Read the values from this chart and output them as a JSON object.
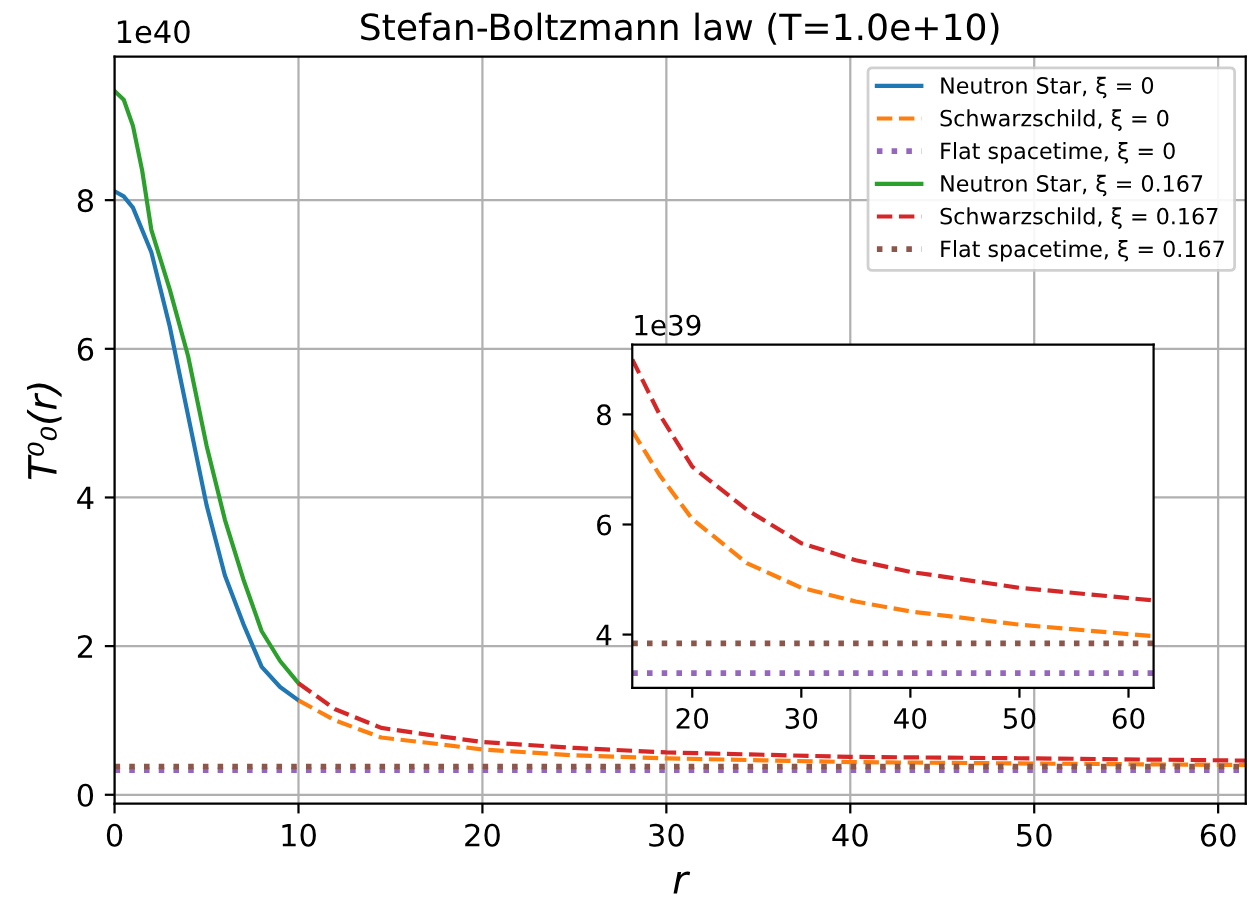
{
  "chart_data": [
    {
      "type": "line",
      "title": "Stefan-Boltzmann law (T=1.0e+10)",
      "xlabel": "r",
      "ylabel": "T⁰₀(r)",
      "annotations": [
        "1e40"
      ],
      "xlim": [
        0,
        61.5
      ],
      "ylim": [
        -0.12,
        9.93
      ],
      "xticks": [
        0,
        10,
        20,
        30,
        40,
        50,
        60
      ],
      "yticks": [
        0,
        2,
        4,
        6,
        8
      ],
      "grid": true,
      "legend": "top right",
      "series": [
        {
          "name": "Neutron Star, ξ = 0",
          "color": "#1f77b4",
          "line_style": "solid",
          "x": [
            0,
            0.5,
            1,
            2,
            3,
            4,
            5,
            6,
            7,
            8,
            9,
            10
          ],
          "values": [
            8.12,
            8.05,
            7.9,
            7.3,
            6.3,
            5.1,
            3.9,
            2.95,
            2.3,
            1.72,
            1.45,
            1.27
          ]
        },
        {
          "name": "Schwarzschild, ξ = 0",
          "color": "#ff7f0e",
          "line_style": "dashed",
          "x": [
            10,
            12,
            14.5,
            17,
            20,
            25,
            30,
            40,
            50,
            61.5
          ],
          "values": [
            1.27,
            1.0,
            0.77,
            0.7,
            0.61,
            0.53,
            0.49,
            0.44,
            0.42,
            0.4
          ]
        },
        {
          "name": "Flat spacetime, ξ = 0",
          "color": "#9467bd",
          "line_style": "dotted",
          "x": [
            0,
            61.5
          ],
          "values": [
            0.33,
            0.33
          ]
        },
        {
          "name": "Neutron Star, ξ = 0.167",
          "color": "#2ca02c",
          "line_style": "solid",
          "x": [
            0,
            0.5,
            1,
            1.5,
            2,
            3,
            4,
            5,
            6,
            7,
            8,
            9,
            10
          ],
          "values": [
            9.47,
            9.35,
            9.0,
            8.4,
            7.6,
            6.8,
            5.9,
            4.7,
            3.7,
            2.9,
            2.2,
            1.8,
            1.5
          ]
        },
        {
          "name": "Schwarzschild, ξ = 0.167",
          "color": "#d62728",
          "line_style": "dashed",
          "x": [
            10,
            12,
            14.5,
            17,
            20,
            25,
            30,
            40,
            50,
            61.5
          ],
          "values": [
            1.5,
            1.15,
            0.9,
            0.81,
            0.71,
            0.63,
            0.57,
            0.51,
            0.49,
            0.46
          ]
        },
        {
          "name": "Flat spacetime, ξ = 0.167",
          "color": "#8c564b",
          "line_style": "dotted",
          "x": [
            0,
            61.5
          ],
          "values": [
            0.38,
            0.38
          ]
        }
      ]
    },
    {
      "type": "line",
      "annotations": [
        "1e39"
      ],
      "xlim": [
        14.5,
        62.3
      ],
      "ylim": [
        3.03,
        9.27
      ],
      "xticks": [
        20,
        30,
        40,
        50,
        60
      ],
      "yticks": [
        4,
        6,
        8
      ],
      "series": [
        {
          "color": "#ff7f0e",
          "line_style": "dashed",
          "x": [
            14.5,
            17,
            20,
            25,
            30,
            35,
            40,
            50,
            62.3
          ],
          "values": [
            7.7,
            6.9,
            6.1,
            5.3,
            4.85,
            4.6,
            4.42,
            4.18,
            3.97
          ]
        },
        {
          "color": "#9467bd",
          "line_style": "dotted",
          "x": [
            14.5,
            62.3
          ],
          "values": [
            3.3,
            3.3
          ]
        },
        {
          "color": "#d62728",
          "line_style": "dashed",
          "x": [
            14.5,
            17,
            20,
            25,
            30,
            35,
            40,
            50,
            62.3
          ],
          "values": [
            9.0,
            8.0,
            7.05,
            6.27,
            5.66,
            5.35,
            5.14,
            4.85,
            4.62
          ]
        },
        {
          "color": "#8c564b",
          "line_style": "dotted",
          "x": [
            14.5,
            62.3
          ],
          "values": [
            3.84,
            3.84
          ]
        }
      ]
    }
  ]
}
